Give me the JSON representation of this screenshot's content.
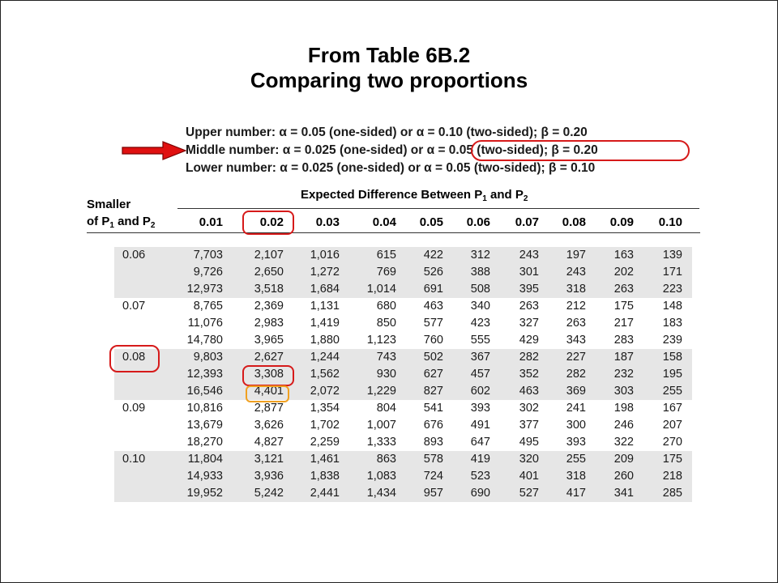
{
  "title": {
    "line1": "From Table 6B.2",
    "line2": "Comparing two proportions"
  },
  "legend_notes": {
    "upper": "Upper number: α = 0.05 (one-sided) or α = 0.10 (two-sided); β = 0.20",
    "middle": "Middle number: α = 0.025 (one-sided) or α = 0.05 (two-sided); β = 0.20",
    "lower": "Lower number: α = 0.025 (one-sided) or α = 0.05 (two-sided); β = 0.10"
  },
  "table": {
    "corner_header_line1": "Smaller",
    "corner_header_line2_prefix": "of P",
    "corner_header_line2_mid": " and P",
    "subscript_1": "1",
    "subscript_2": "2",
    "group_header_prefix": "Expected Difference Between P",
    "group_header_mid": " and P",
    "columns": [
      "0.01",
      "0.02",
      "0.03",
      "0.04",
      "0.05",
      "0.06",
      "0.07",
      "0.08",
      "0.09",
      "0.10"
    ],
    "groups": [
      {
        "label": "0.06",
        "rows": [
          [
            "7,703",
            "2,107",
            "1,016",
            "615",
            "422",
            "312",
            "243",
            "197",
            "163",
            "139"
          ],
          [
            "9,726",
            "2,650",
            "1,272",
            "769",
            "526",
            "388",
            "301",
            "243",
            "202",
            "171"
          ],
          [
            "12,973",
            "3,518",
            "1,684",
            "1,014",
            "691",
            "508",
            "395",
            "318",
            "263",
            "223"
          ]
        ]
      },
      {
        "label": "0.07",
        "rows": [
          [
            "8,765",
            "2,369",
            "1,131",
            "680",
            "463",
            "340",
            "263",
            "212",
            "175",
            "148"
          ],
          [
            "11,076",
            "2,983",
            "1,419",
            "850",
            "577",
            "423",
            "327",
            "263",
            "217",
            "183"
          ],
          [
            "14,780",
            "3,965",
            "1,880",
            "1,123",
            "760",
            "555",
            "429",
            "343",
            "283",
            "239"
          ]
        ]
      },
      {
        "label": "0.08",
        "rows": [
          [
            "9,803",
            "2,627",
            "1,244",
            "743",
            "502",
            "367",
            "282",
            "227",
            "187",
            "158"
          ],
          [
            "12,393",
            "3,308",
            "1,562",
            "930",
            "627",
            "457",
            "352",
            "282",
            "232",
            "195"
          ],
          [
            "16,546",
            "4,401",
            "2,072",
            "1,229",
            "827",
            "602",
            "463",
            "369",
            "303",
            "255"
          ]
        ]
      },
      {
        "label": "0.09",
        "rows": [
          [
            "10,816",
            "2,877",
            "1,354",
            "804",
            "541",
            "393",
            "302",
            "241",
            "198",
            "167"
          ],
          [
            "13,679",
            "3,626",
            "1,702",
            "1,007",
            "676",
            "491",
            "377",
            "300",
            "246",
            "207"
          ],
          [
            "18,270",
            "4,827",
            "2,259",
            "1,333",
            "893",
            "647",
            "495",
            "393",
            "322",
            "270"
          ]
        ]
      },
      {
        "label": "0.10",
        "rows": [
          [
            "11,804",
            "3,121",
            "1,461",
            "863",
            "578",
            "419",
            "320",
            "255",
            "209",
            "175"
          ],
          [
            "14,933",
            "3,936",
            "1,838",
            "1,083",
            "724",
            "523",
            "401",
            "318",
            "260",
            "218"
          ],
          [
            "19,952",
            "5,242",
            "2,441",
            "1,434",
            "957",
            "690",
            "527",
            "417",
            "341",
            "285"
          ]
        ]
      }
    ]
  },
  "colors": {
    "highlight_red": "#d61a1a",
    "highlight_orange": "#f0a020",
    "arrow_red": "#e01010",
    "shaded_band": "#e6e6e6"
  }
}
